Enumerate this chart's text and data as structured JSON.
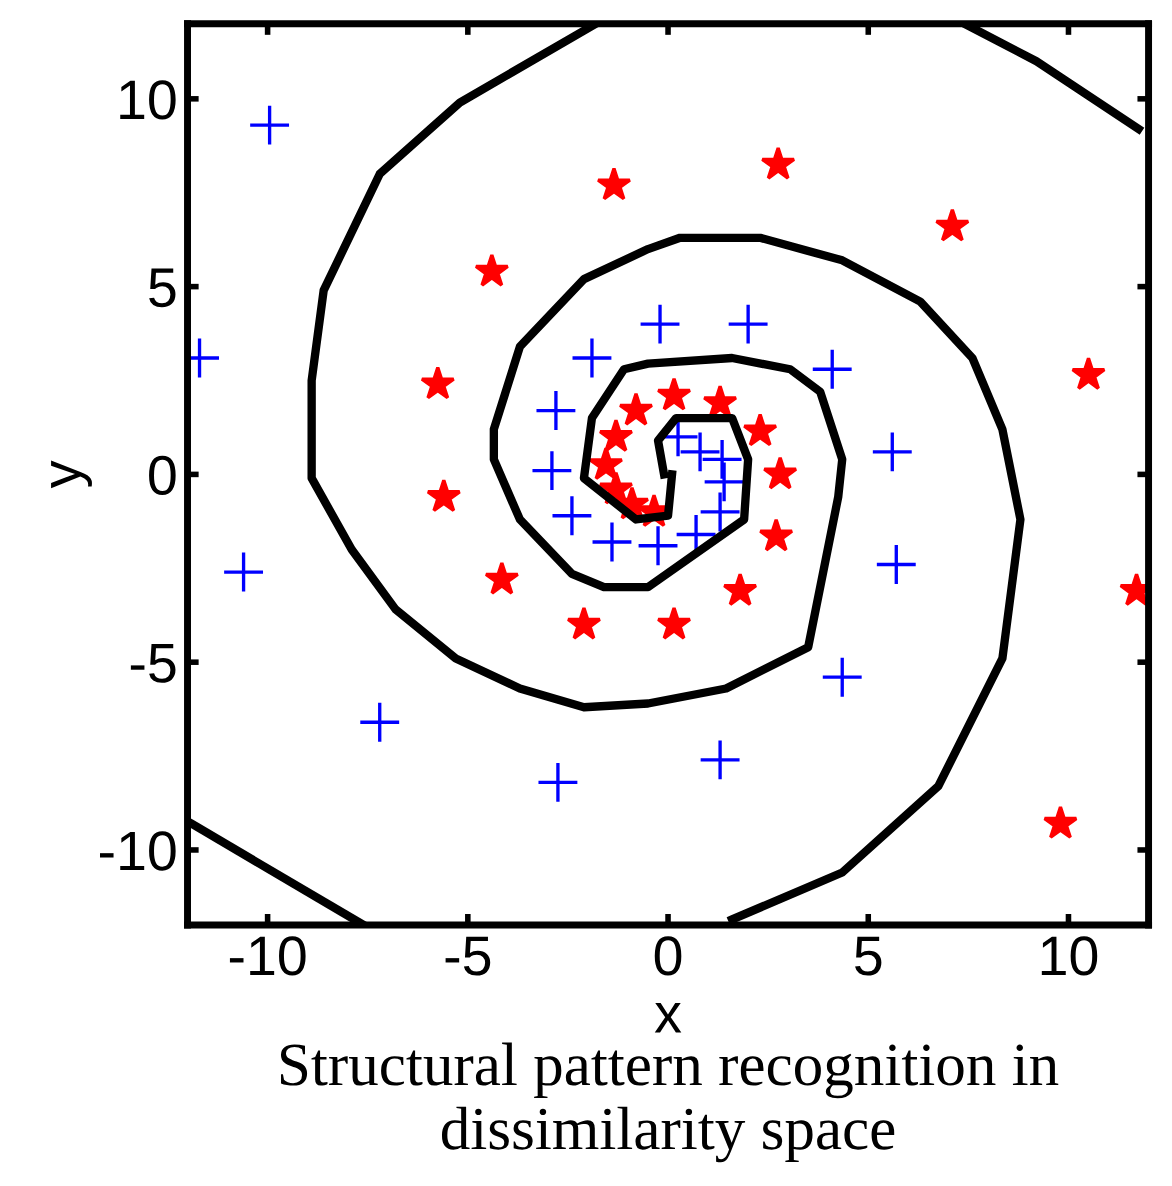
{
  "chart_data": {
    "type": "scatter",
    "xlabel": "x",
    "ylabel": "y",
    "xlim": [
      -12,
      12
    ],
    "ylim": [
      -12,
      12
    ],
    "xticks": [
      -10,
      -5,
      0,
      5,
      10
    ],
    "yticks": [
      -10,
      -5,
      0,
      5,
      10
    ],
    "grid": false,
    "legend": false,
    "annotations": [
      "Structural pattern recognition in dissimilarity space"
    ],
    "series": [
      {
        "marker": "cross",
        "color": "#0000ff",
        "x": [
          -9.95,
          -11.7,
          -10.6,
          -7.2,
          -2.75,
          1.3,
          4.35,
          5.7,
          5.6,
          4.1,
          2.0,
          -0.2,
          -1.9,
          -2.8,
          -2.9,
          -2.4,
          -1.4,
          -0.25,
          0.7,
          1.3,
          1.4,
          0.25,
          0.8,
          1.35
        ],
        "values": [
          9.3,
          3.1,
          -2.6,
          -6.6,
          -8.2,
          -7.6,
          -5.4,
          -2.4,
          0.6,
          2.8,
          4.0,
          4.0,
          3.1,
          1.7,
          0.1,
          -1.1,
          -1.8,
          -1.9,
          -1.6,
          -1.0,
          -0.2,
          1.0,
          0.6,
          0.4
        ]
      },
      {
        "marker": "star",
        "color": "#ff0000",
        "x": [
          -1.35,
          -4.4,
          -5.75,
          -0.8,
          -1.3,
          -1.55,
          0.15,
          1.3,
          2.3,
          2.8,
          2.75,
          7.1,
          10.5,
          11.7,
          9.8,
          2.7,
          1.8,
          0.15,
          -0.35,
          -5.6,
          -4.15,
          -2.1,
          -1.3,
          -0.9
        ],
        "values": [
          7.7,
          5.4,
          2.4,
          1.7,
          1.0,
          0.25,
          2.1,
          1.9,
          1.15,
          0.0,
          8.25,
          6.6,
          2.65,
          -3.1,
          -9.3,
          -1.65,
          -3.1,
          -4.0,
          -1.0,
          -0.6,
          -2.8,
          -4.0,
          -0.4,
          -0.8
        ]
      },
      {
        "type": "line",
        "marker": "none",
        "line_style": "solid",
        "color": "#000000",
        "x": [
          1.6,
          4.35,
          6.75,
          8.35,
          8.8,
          8.35,
          7.6,
          6.3,
          4.35,
          2.3,
          0.3,
          -0.5,
          -2.1,
          -3.7,
          -4.35,
          -4.35,
          -3.7,
          -2.4,
          -1.6,
          -0.5,
          1.9,
          2.0,
          1.6,
          0.2,
          -0.25,
          -0.1
        ],
        "values": [
          -11.85,
          -10.6,
          -8.3,
          -4.9,
          -1.2,
          1.2,
          3.1,
          4.6,
          5.7,
          6.3,
          6.3,
          6.0,
          5.2,
          3.4,
          1.2,
          0.4,
          -1.2,
          -2.65,
          -3.0,
          -3.0,
          -1.2,
          0.4,
          1.5,
          1.5,
          0.9,
          0.0
        ]
      },
      {
        "type": "line",
        "marker": "none",
        "line_style": "solid",
        "color": "#000000",
        "x": [
          -1.8,
          -5.2,
          -7.2,
          -8.6,
          -8.9,
          -8.9,
          -7.9,
          -6.8,
          -5.3,
          -3.7,
          -2.1,
          -0.5,
          1.45,
          3.5,
          4.25,
          4.35,
          3.8,
          3.05,
          1.6,
          -0.5,
          -1.1,
          -1.9,
          -2.1,
          -0.8,
          0.0,
          0.1
        ],
        "values": [
          12,
          9.9,
          8.0,
          4.9,
          2.5,
          -0.1,
          -2.0,
          -3.6,
          -4.9,
          -5.7,
          -6.2,
          -6.1,
          -5.7,
          -4.6,
          -0.6,
          0.4,
          2.2,
          2.8,
          3.1,
          2.95,
          2.8,
          1.5,
          -0.1,
          -1.2,
          -1.1,
          0.0
        ]
      },
      {
        "type": "line",
        "marker": "none",
        "line_style": "solid",
        "color": "#000000",
        "x": [
          7.4,
          9.2,
          11.75
        ],
        "values": [
          12,
          11,
          9.2
        ]
      },
      {
        "type": "line",
        "marker": "none",
        "line_style": "solid",
        "color": "#000000",
        "x": [
          -11.9,
          -7.6
        ],
        "values": [
          -9.3,
          -12
        ]
      }
    ]
  }
}
